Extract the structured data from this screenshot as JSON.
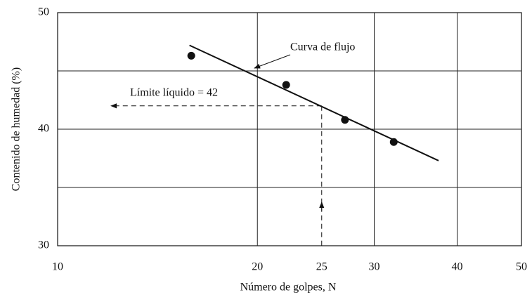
{
  "chart_data": {
    "type": "scatter",
    "x_label": "Número de golpes, N",
    "y_label": "Contenido de humedad (%)",
    "x_scale": "log",
    "xlim": [
      10,
      50
    ],
    "xticks": [
      10,
      20,
      25,
      30,
      40,
      50
    ],
    "xgrid": [
      20,
      30,
      40
    ],
    "ylim": [
      30,
      50
    ],
    "yticks": [
      30,
      40,
      50
    ],
    "ygrid": [
      35,
      40,
      45
    ],
    "series": [
      {
        "name": "Curva de flujo",
        "color": "#111111",
        "x": [
          15.9,
          22.1,
          27.1,
          32.1
        ],
        "values": [
          46.3,
          43.8,
          40.8,
          38.9
        ]
      }
    ],
    "trend_line": {
      "x": [
        15.8,
        37.5
      ],
      "y": [
        47.2,
        37.3
      ]
    },
    "liquid_limit": {
      "label": "Límite líquido = 42",
      "x": 25,
      "y": 42
    }
  }
}
